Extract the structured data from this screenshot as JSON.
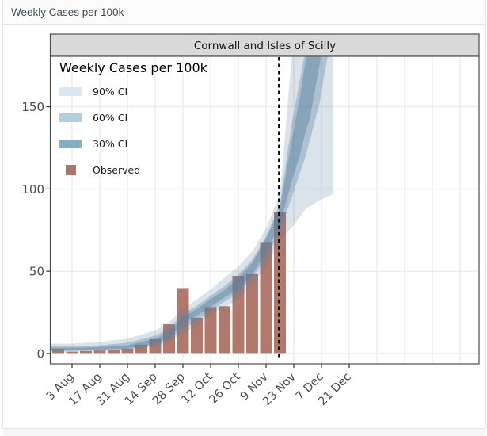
{
  "window": {
    "title": "Weekly Cases per 100k"
  },
  "chart_data": {
    "type": "bar+area-fan",
    "facet_title": "Cornwall and Isles of Scilly",
    "legend": {
      "title": "Weekly Cases per 100k",
      "items": [
        {
          "label": "90% CI",
          "color": "#dce8f0",
          "kind": "ribbon"
        },
        {
          "label": "60% CI",
          "color": "#b3cfdf",
          "kind": "ribbon"
        },
        {
          "label": "30% CI",
          "color": "#85adc4",
          "kind": "ribbon"
        },
        {
          "label": "Observed",
          "color": "#a8766c",
          "kind": "square"
        }
      ]
    },
    "y_axis": {
      "ticks": [
        0,
        50,
        100,
        150
      ],
      "range": [
        -7.5,
        180.5
      ]
    },
    "x_axis": {
      "tick_labels": [
        "3 Aug",
        "17 Aug",
        "31 Aug",
        "14 Sep",
        "28 Sep",
        "12 Oct",
        "26 Oct",
        "9 Nov",
        "23 Nov",
        "7 Dec",
        "21 Dec"
      ],
      "tick_day_offsets": [
        0,
        14,
        28,
        42,
        56,
        70,
        84,
        98,
        112,
        126,
        140
      ],
      "extra_gridline_day_offsets": [
        154,
        168,
        182,
        196
      ],
      "range_days": [
        -11.4,
        205.6
      ]
    },
    "observed": {
      "label": "Observed",
      "color": "#b1796c",
      "bar_width_days": 7,
      "week_labels": [
        "27 Jul",
        "3 Aug",
        "10 Aug",
        "17 Aug",
        "24 Aug",
        "31 Aug",
        "7 Sep",
        "14 Sep",
        "21 Sep",
        "28 Sep",
        "5 Oct",
        "12 Oct",
        "19 Oct",
        "26 Oct",
        "2 Nov",
        "9 Nov",
        "16 Nov"
      ],
      "values": [
        3,
        1.4,
        1.8,
        2.1,
        2.4,
        3.2,
        5.6,
        9,
        18,
        40,
        22,
        28.5,
        29,
        47.5,
        48.5,
        68,
        86
      ]
    },
    "bands": [
      {
        "name": "90% CI",
        "fill": "rgba(88,129,160,0.22)",
        "d": [
          -11,
          0,
          14,
          28,
          42,
          49,
          56,
          63,
          70,
          77,
          84,
          91,
          98,
          105,
          109,
          112,
          118,
          125,
          132
        ],
        "hi": [
          6,
          6,
          7,
          9,
          14,
          19,
          27,
          33,
          39,
          46,
          53,
          62,
          76,
          97,
          152,
          195,
          240,
          280,
          300
        ],
        "lo": [
          1,
          1,
          1.5,
          2,
          4,
          7,
          12,
          17,
          24,
          28,
          33,
          42,
          53,
          68,
          74,
          78,
          88,
          93,
          97
        ]
      },
      {
        "name": "60% CI",
        "fill": "rgba(88,129,160,0.35)",
        "d": [
          -11,
          0,
          14,
          28,
          42,
          49,
          56,
          63,
          70,
          77,
          84,
          91,
          98,
          105,
          111,
          118,
          125,
          129,
          132
        ],
        "hi": [
          4.5,
          4.5,
          5,
          6.5,
          11,
          15,
          24,
          29,
          35,
          41,
          48,
          57,
          71,
          91,
          140,
          185,
          240,
          265,
          285
        ],
        "lo": [
          1.5,
          1.5,
          2,
          2.5,
          5,
          8.5,
          15,
          20,
          26,
          31.5,
          37,
          46,
          58,
          74,
          95,
          120,
          152,
          180,
          205
        ]
      },
      {
        "name": "30% CI",
        "fill": "rgba(88,129,160,0.45)",
        "d": [
          -11,
          0,
          14,
          28,
          42,
          49,
          56,
          63,
          70,
          77,
          84,
          91,
          98,
          105,
          111,
          115,
          118,
          120,
          126,
          132
        ],
        "hi": [
          3.5,
          3.5,
          4,
          5,
          9,
          13,
          22,
          27,
          33,
          38.5,
          46,
          55,
          70,
          88,
          130,
          155,
          178,
          192,
          250,
          285
        ],
        "lo": [
          2,
          2,
          2.5,
          3,
          6,
          10,
          18,
          23,
          28.5,
          34,
          39,
          48,
          62,
          78,
          105,
          120,
          135,
          142,
          182,
          245
        ]
      }
    ],
    "forecast_divider": {
      "style": "dotted",
      "color": "#000000",
      "day_offset": 104.5
    },
    "panel": {
      "strip_bg": "#d9d9d9",
      "border_color": "#4d4d4d",
      "gridline_color": "#ececec"
    }
  }
}
